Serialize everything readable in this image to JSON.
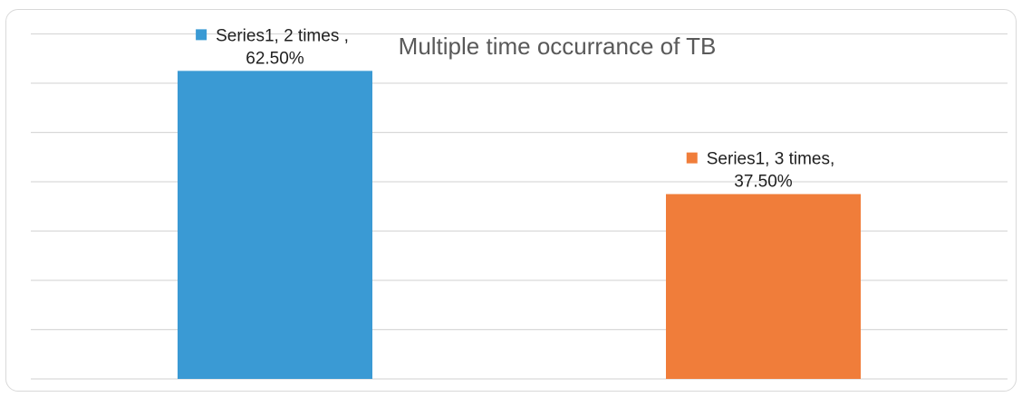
{
  "chart_data": {
    "type": "bar",
    "title": "Multiple time occurrance of TB",
    "categories": [
      "2 times",
      "3 times"
    ],
    "series": [
      {
        "name": "Series1",
        "values": [
          62.5,
          37.5
        ]
      }
    ],
    "data_labels": [
      {
        "line1": "Series1, 2 times ,",
        "line2": "62.50%"
      },
      {
        "line1": "Series1, 3 times,",
        "line2": "37.50%"
      }
    ],
    "bar_colors": [
      "#3a9ad4",
      "#f07d3a"
    ],
    "gridline_color": "#d9d9d9",
    "ylim": [
      0,
      70
    ],
    "grid": true,
    "legend": "none"
  }
}
